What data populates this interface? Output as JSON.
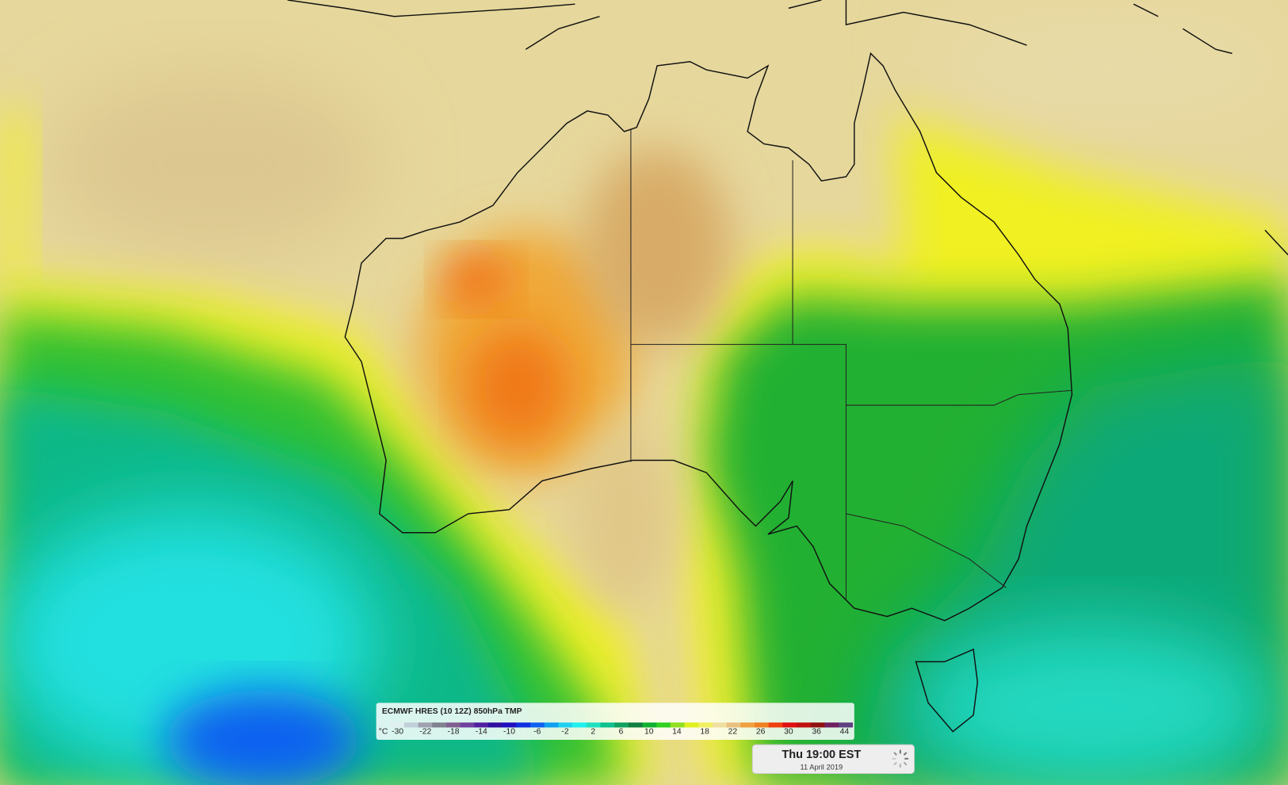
{
  "legend": {
    "title": "ECMWF HRES (10 12Z) 850hPa TMP",
    "unit": "°C",
    "ticks": [
      -30,
      -22,
      -18,
      -14,
      -10,
      -6,
      -2,
      2,
      6,
      10,
      14,
      18,
      22,
      26,
      30,
      36,
      44
    ],
    "colors": [
      "#e0f0f0",
      "#c0d0d8",
      "#a0a0b0",
      "#808090",
      "#806090",
      "#7040a0",
      "#5020a0",
      "#3010a0",
      "#2010c0",
      "#1030e0",
      "#1060f0",
      "#10a0f0",
      "#20d0f0",
      "#20f0f0",
      "#20e0c0",
      "#10c090",
      "#10a060",
      "#108040",
      "#10b030",
      "#30d020",
      "#90e020",
      "#e0f020",
      "#f0f060",
      "#f0e0a0",
      "#e8c080",
      "#f0a040",
      "#f08020",
      "#f04010",
      "#e01010",
      "#c01010",
      "#901010",
      "#702060",
      "#604080"
    ]
  },
  "time": {
    "label": "Thu 19:00 EST",
    "date": "11 April 2019"
  }
}
